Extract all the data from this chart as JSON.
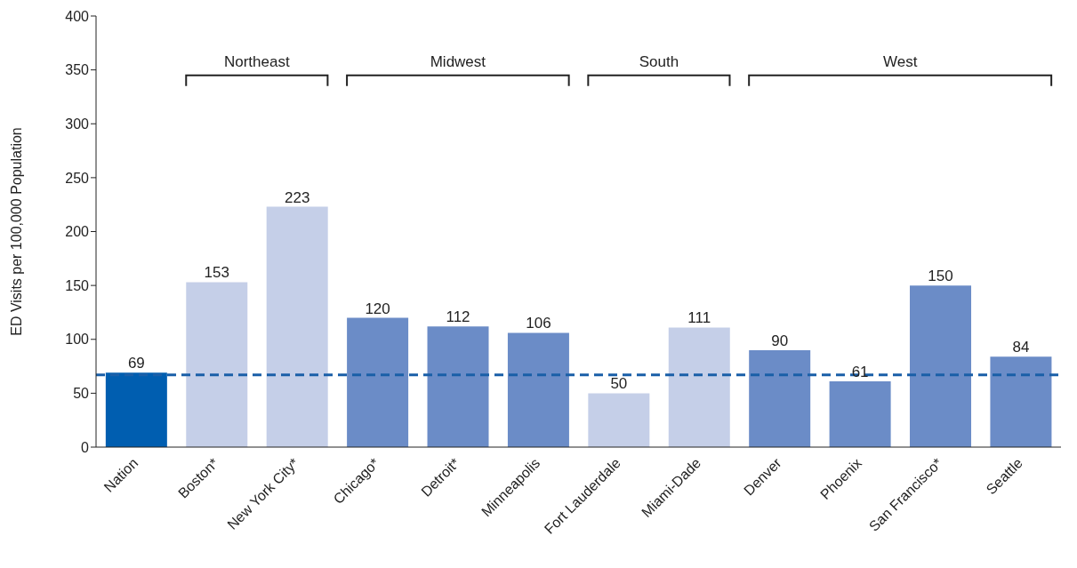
{
  "chart_data": {
    "type": "bar",
    "ylabel": "ED Visits per 100,000 Population",
    "categories": [
      "Nation",
      "Boston*",
      "New York City*",
      "Chicago*",
      "Detroit*",
      "Minneapolis",
      "Fort Lauderdale",
      "Miami-Dade",
      "Denver",
      "Phoenix",
      "San Francisco*",
      "Seattle"
    ],
    "values": [
      69,
      153,
      223,
      120,
      112,
      106,
      50,
      111,
      90,
      61,
      150,
      84
    ],
    "colors": [
      "#005eb0",
      "#c5cfe8",
      "#c5cfe8",
      "#6b8cc7",
      "#6b8cc7",
      "#6b8cc7",
      "#c5cfe8",
      "#c5cfe8",
      "#6b8cc7",
      "#6b8cc7",
      "#6b8cc7",
      "#6b8cc7"
    ],
    "ylim": [
      0,
      400
    ],
    "yticks": [
      0,
      50,
      100,
      150,
      200,
      250,
      300,
      350,
      400
    ],
    "grid": false,
    "data_labels": true,
    "ref_lines": [
      {
        "axis": "y",
        "value": 67,
        "color": "#1a5fa8",
        "line_style": "dashed"
      }
    ],
    "annotations": [
      "Northeast",
      "Midwest",
      "South",
      "West"
    ]
  }
}
